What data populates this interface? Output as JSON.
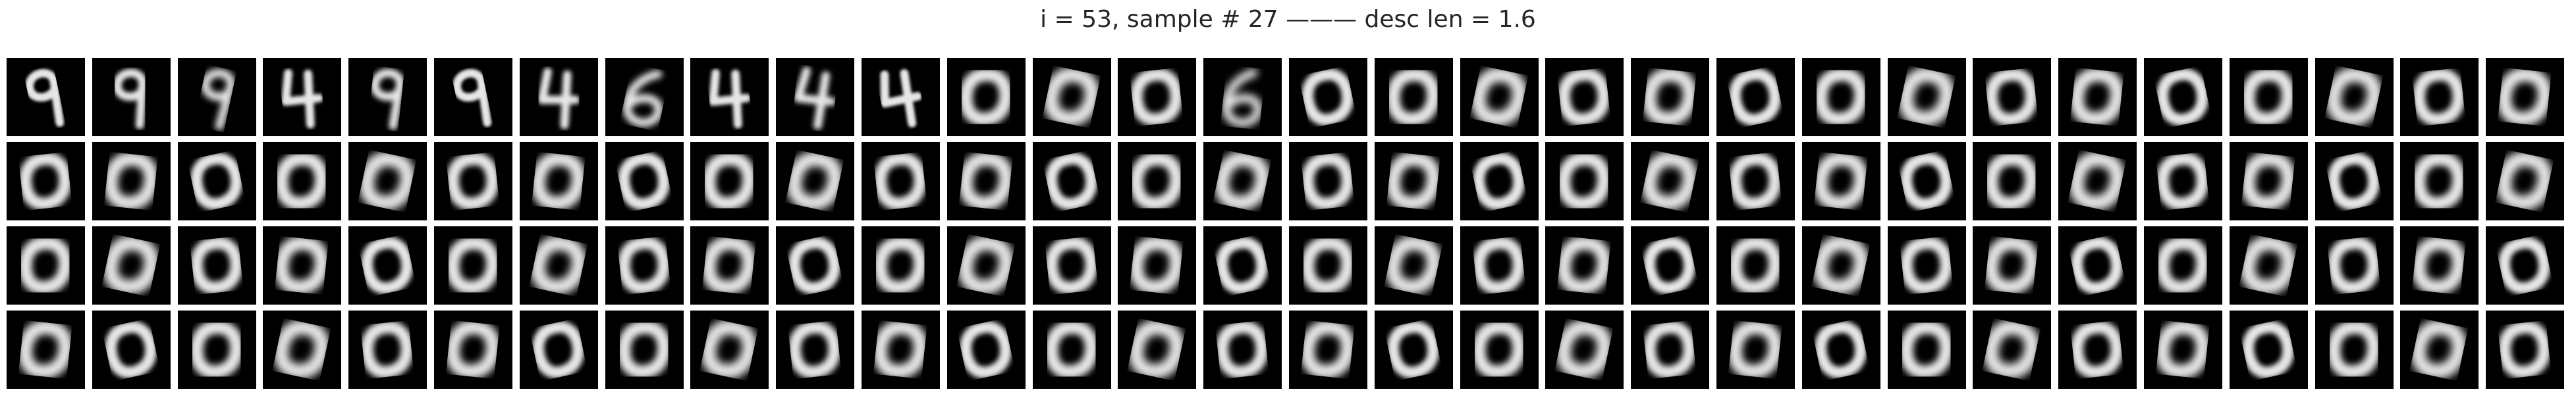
{
  "figure": {
    "title": "i = 53, sample # 27 ——— desc len = 1.6",
    "grid_rows": 4,
    "grid_cols": 30
  },
  "rows": [
    {
      "cells": [
        "9",
        "9",
        "9",
        "4",
        "9",
        "9",
        "4",
        "6",
        "4",
        "4",
        "4",
        "0",
        "0",
        "0",
        "6",
        "0",
        "0",
        "0",
        "0",
        "0",
        "0",
        "0",
        "0",
        "0",
        "0",
        "0",
        "0",
        "0",
        "0",
        "0"
      ]
    },
    {
      "cells": [
        "0",
        "0",
        "0",
        "0",
        "0",
        "0",
        "0",
        "0",
        "0",
        "0",
        "0",
        "0",
        "0",
        "0",
        "0",
        "0",
        "0",
        "0",
        "0",
        "0",
        "0",
        "0",
        "0",
        "0",
        "0",
        "0",
        "0",
        "0",
        "0",
        "0"
      ]
    },
    {
      "cells": [
        "0",
        "0",
        "0",
        "0",
        "0",
        "0",
        "0",
        "0",
        "0",
        "0",
        "0",
        "0",
        "0",
        "0",
        "0",
        "0",
        "0",
        "0",
        "0",
        "0",
        "0",
        "0",
        "0",
        "0",
        "0",
        "0",
        "0",
        "0",
        "0",
        "0"
      ]
    },
    {
      "cells": [
        "0",
        "0",
        "0",
        "0",
        "0",
        "0",
        "0",
        "0",
        "0",
        "0",
        "0",
        "0",
        "0",
        "0",
        "0",
        "0",
        "0",
        "0",
        "0",
        "0",
        "0",
        "0",
        "0",
        "0",
        "0",
        "0",
        "0",
        "0",
        "0",
        "0"
      ]
    }
  ]
}
